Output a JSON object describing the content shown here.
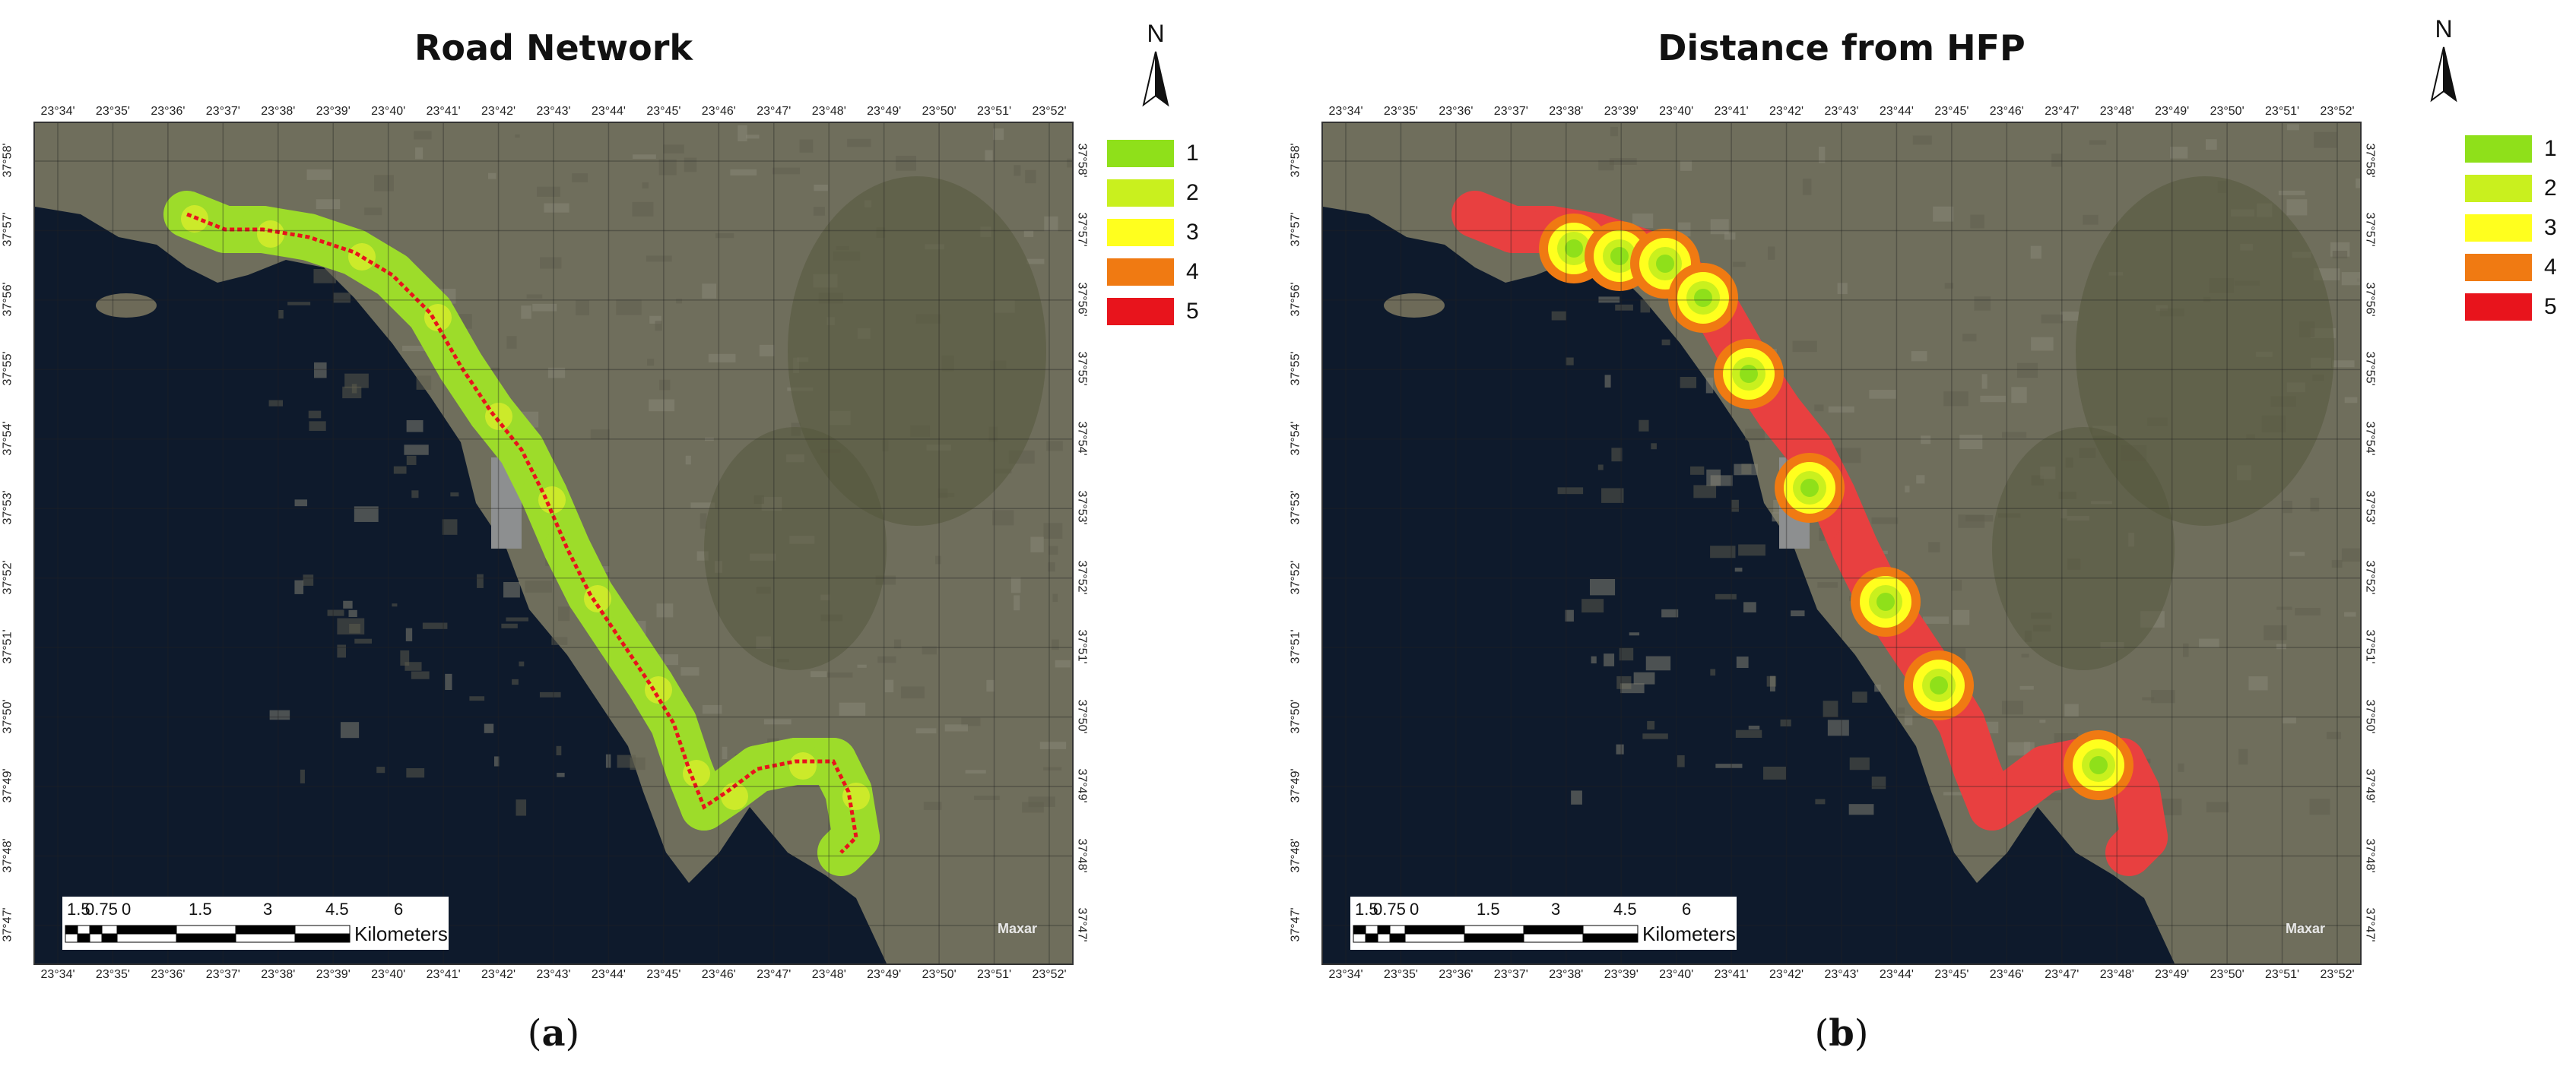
{
  "panels": [
    {
      "id": "a",
      "title": "Road Network",
      "caption_letter": "a",
      "legend": [
        {
          "label": "1",
          "color": "#8fe01a"
        },
        {
          "label": "2",
          "color": "#c9f01e"
        },
        {
          "label": "3",
          "color": "#ffff1e"
        },
        {
          "label": "4",
          "color": "#f07a12"
        },
        {
          "label": "5",
          "color": "#e8141c"
        }
      ]
    },
    {
      "id": "b",
      "title": "Distance from HFP",
      "caption_letter": "b",
      "legend": [
        {
          "label": "1",
          "color": "#8fe01a"
        },
        {
          "label": "2",
          "color": "#c9f01e"
        },
        {
          "label": "3",
          "color": "#ffff1e"
        },
        {
          "label": "4",
          "color": "#f07a12"
        },
        {
          "label": "5",
          "color": "#e8141c"
        }
      ]
    }
  ],
  "north_arrow": {
    "label": "N"
  },
  "scale_bar": {
    "labels": [
      "1.5",
      "0.75",
      "0",
      "1.5",
      "3",
      "4.5",
      "6"
    ],
    "unit": "Kilometers"
  },
  "attribution": "Maxar",
  "x_ticks": [
    "23°34'",
    "23°35'",
    "23°36'",
    "23°37'",
    "23°38'",
    "23°39'",
    "23°40'",
    "23°41'",
    "23°42'",
    "23°43'",
    "23°44'",
    "23°45'",
    "23°46'",
    "23°47'",
    "23°48'",
    "23°49'",
    "23°50'",
    "23°51'",
    "23°52'"
  ],
  "y_ticks": [
    "37°58'",
    "37°57'",
    "37°56'",
    "37°55'",
    "37°54'",
    "37°53'",
    "37°52'",
    "37°51'",
    "37°50'",
    "37°49'",
    "37°48'",
    "37°47'"
  ],
  "colors": {
    "sea": "#0e1a2c",
    "land": "#6f6e5c",
    "urban": "#7a7a72"
  }
}
